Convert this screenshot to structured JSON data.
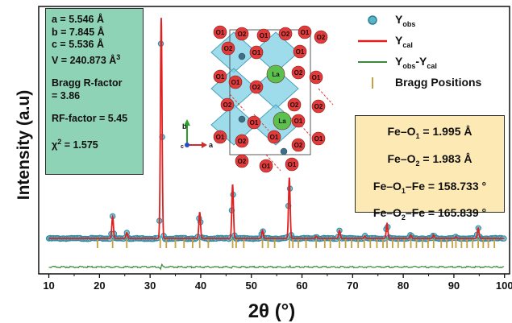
{
  "chart_data": {
    "type": "line",
    "title": "",
    "xlabel": "2θ (°)",
    "ylabel": "Intensity (a.u)",
    "xlim": [
      8,
      101
    ],
    "ylim": [
      -12,
      105
    ],
    "x_ticks": [
      10,
      20,
      30,
      40,
      50,
      60,
      70,
      80,
      90,
      100
    ],
    "grid": false,
    "legend_position": "top-right",
    "baseline": 3.5,
    "series": [
      {
        "name": "Yobs",
        "style": "open-circles",
        "color": "#4aa8bf"
      },
      {
        "name": "Ycal",
        "style": "line",
        "color": "#e02020"
      },
      {
        "name": "Yobs-Ycal",
        "style": "line",
        "color": "#3a8a3a",
        "offset": -9
      },
      {
        "name": "Bragg Positions",
        "style": "ticks",
        "color": "#c8a040"
      }
    ],
    "peaks": [
      {
        "x": 22.6,
        "y": 13
      },
      {
        "x": 25.4,
        "y": 6
      },
      {
        "x": 32.2,
        "y": 100
      },
      {
        "x": 39.8,
        "y": 15
      },
      {
        "x": 46.3,
        "y": 27
      },
      {
        "x": 52.2,
        "y": 7
      },
      {
        "x": 57.5,
        "y": 30
      },
      {
        "x": 62.8,
        "y": 4.5
      },
      {
        "x": 67.4,
        "y": 7
      },
      {
        "x": 72.4,
        "y": 4.5
      },
      {
        "x": 76.8,
        "y": 10
      },
      {
        "x": 81.5,
        "y": 5
      },
      {
        "x": 86.0,
        "y": 5
      },
      {
        "x": 90.4,
        "y": 4.2
      },
      {
        "x": 94.8,
        "y": 8
      }
    ],
    "bragg_positions": [
      19.6,
      22.6,
      25.4,
      32.0,
      33.2,
      35.0,
      36.7,
      38.4,
      39.8,
      41.5,
      46.3,
      47.0,
      48.5,
      52.2,
      53.3,
      54.6,
      57.5,
      58.2,
      59.3,
      60.8,
      62.8,
      64.5,
      65.6,
      67.4,
      68.6,
      69.8,
      71.1,
      72.3,
      73.5,
      74.8,
      76.0,
      76.8,
      77.9,
      79.0,
      80.2,
      81.5,
      82.6,
      83.8,
      84.9,
      86.0,
      87.5,
      88.6,
      89.7,
      90.4,
      91.5,
      92.6,
      93.7,
      94.8,
      95.8,
      96.8,
      98.0
    ],
    "lattice_parameters": {
      "a": "a = 5.546 Å",
      "b": "b = 7.845 Å",
      "c": "c = 5.536 Å",
      "v_prefix": "V = 240.873 Å",
      "v_sup": "3",
      "bragg_label": "Bragg R-factor",
      "bragg_value": "= 3.86",
      "rf": "RF-factor = 5.45",
      "chi_prefix": "χ",
      "chi_sup": "2",
      "chi_value": " = 1.575"
    },
    "bond_info": {
      "l1_pre": "Fe–O",
      "l1_sub": "1",
      "l1_post": " = 1.995 Å",
      "l2_pre": "Fe–O",
      "l2_sub": "2",
      "l2_post": " = 1.983 Å",
      "l3_pre": "Fe–O",
      "l3_sub": "1",
      "l3_post": "–Fe = 158.733 °",
      "l4_pre": "Fe–O",
      "l4_sub": "2",
      "l4_post": "–Fe = 165.839 °"
    },
    "legend": {
      "yobs_main": "Y",
      "yobs_sub": "obs",
      "ycal_main": "Y",
      "ycal_sub": "cal",
      "diff_main": "Y",
      "diff_sub1": "obs",
      "diff_mid": "-Y",
      "diff_sub2": "cal",
      "bragg": "Bragg Positions"
    },
    "structure": {
      "atom_la": "La",
      "atom_o1": "O1",
      "atom_o2": "O2",
      "atom_fe": "Fe",
      "axis_a": "a",
      "axis_b": "b",
      "axis_c": "c"
    }
  }
}
